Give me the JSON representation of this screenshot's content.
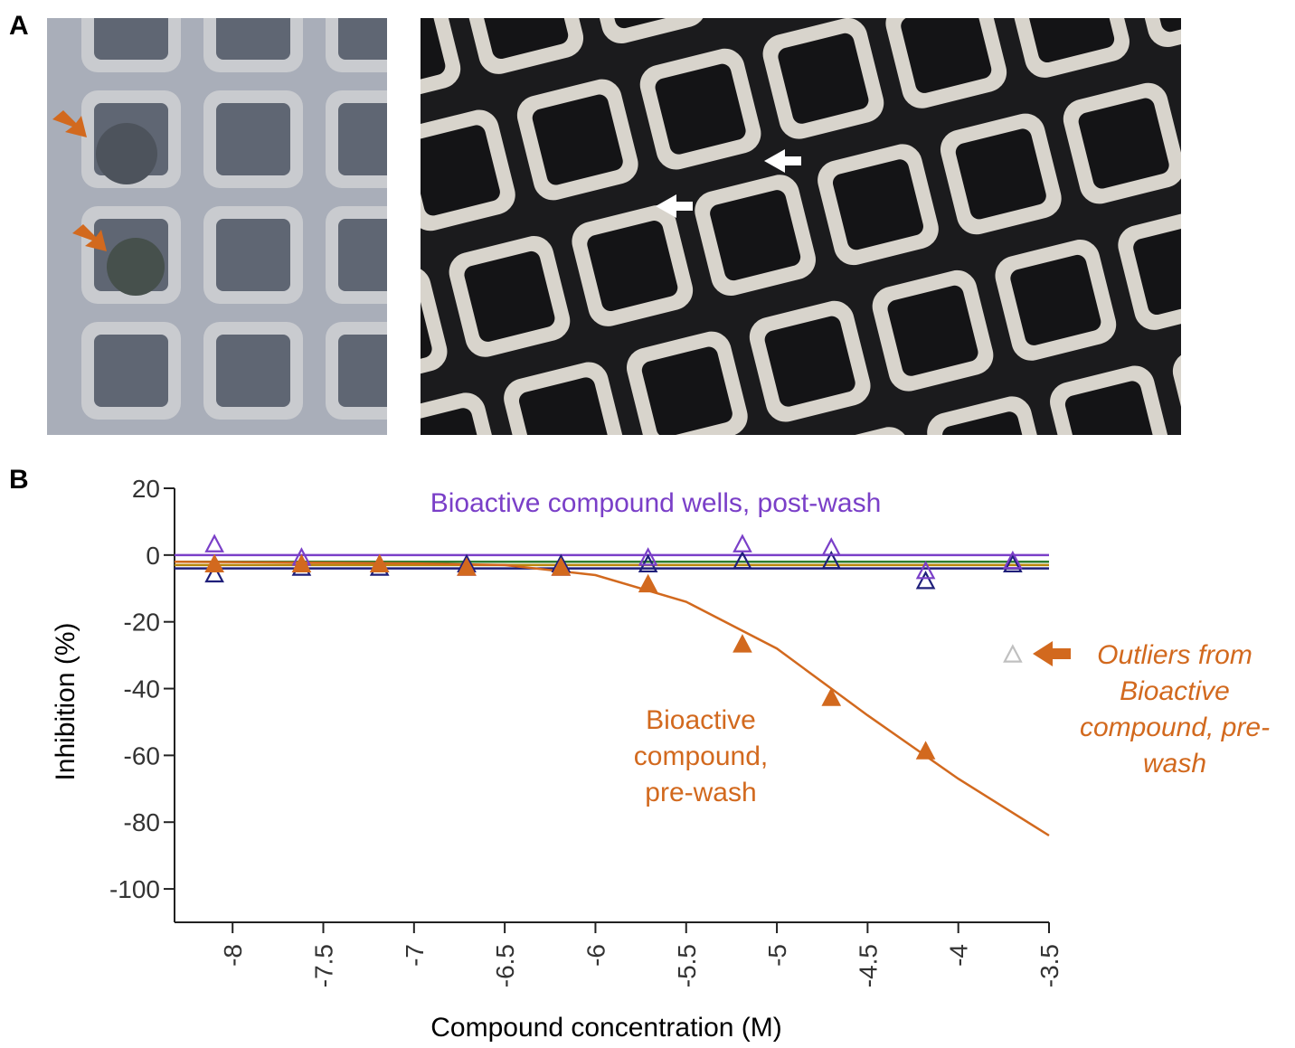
{
  "panels": {
    "a_label": "A",
    "b_label": "B"
  },
  "chart_data": {
    "type": "scatter",
    "ylabel": "Inhibition (%)",
    "xlabel": "Compound concentration (M)",
    "xlim": [
      -8.32,
      -3.5
    ],
    "ylim": [
      -110,
      20
    ],
    "xticks": [
      -8,
      -7.5,
      -7,
      -6.5,
      -6,
      -5.5,
      -5,
      -4.5,
      -4,
      -3.5
    ],
    "yticks": [
      -100,
      -80,
      -60,
      -40,
      -20,
      0,
      20
    ],
    "x": [
      -8.1,
      -7.62,
      -7.19,
      -6.71,
      -6.19,
      -5.71,
      -5.19,
      -4.7,
      -4.18,
      -3.7
    ],
    "series": [
      {
        "color": "#1f1f7a",
        "marker": "open",
        "values": [
          -6,
          -4,
          -4,
          -3,
          -3,
          -3,
          -2,
          -2,
          -8,
          -3
        ]
      },
      {
        "color": "#7a3fc8",
        "marker": "open",
        "values": [
          3,
          -1,
          -3,
          -4,
          -4,
          -1,
          3,
          2,
          -5,
          -2
        ]
      },
      {
        "color": "#d2691e",
        "marker": "filled",
        "values": [
          -3,
          -3,
          -3,
          -4,
          -4,
          -9,
          -27,
          -43,
          -59,
          null
        ]
      },
      {
        "color": "#c0c0c0",
        "marker": "open",
        "values": [
          null,
          null,
          null,
          null,
          null,
          null,
          null,
          null,
          null,
          -30
        ]
      }
    ],
    "fit_lines": [
      {
        "color": "#7a3fc8",
        "x": [
          -8.32,
          -3.5
        ],
        "values": [
          0,
          0
        ]
      },
      {
        "color": "#2e7d32",
        "x": [
          -8.32,
          -3.5
        ],
        "values": [
          -2,
          -2
        ]
      },
      {
        "color": "#b8860b",
        "x": [
          -8.32,
          -3.5
        ],
        "values": [
          -3,
          -3
        ]
      },
      {
        "color": "#1f1f7a",
        "x": [
          -8.32,
          -3.5
        ],
        "values": [
          -4,
          -4
        ]
      },
      {
        "color": "#d2691e",
        "x": [
          -8.32,
          -7,
          -6.5,
          -6,
          -5.5,
          -5,
          -4.5,
          -4,
          -3.5
        ],
        "values": [
          -2,
          -2.5,
          -3,
          -6,
          -14,
          -28,
          -48,
          -67,
          -84
        ]
      }
    ],
    "annotations": [
      {
        "color": "#7a3fc8",
        "italic": false,
        "lines": [
          "Bioactive compound wells, post-wash"
        ]
      },
      {
        "color": "#d2691e",
        "italic": false,
        "lines": [
          "Bioactive",
          "compound,",
          "pre-wash"
        ]
      },
      {
        "color": "#d2691e",
        "italic": true,
        "lines": [
          "Outliers from",
          "Bioactive",
          "compound, pre-",
          "wash"
        ]
      }
    ]
  }
}
